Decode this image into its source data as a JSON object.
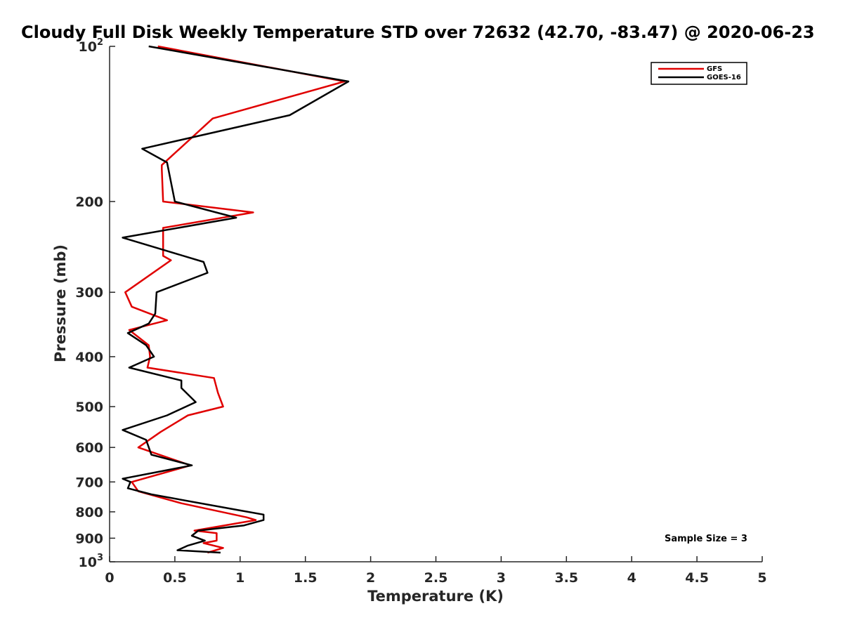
{
  "chart_data": {
    "type": "line",
    "title": "Cloudy Full Disk Weekly Temperature STD over 72632 (42.70, -83.47) @ 2020-06-23",
    "xlabel": "Temperature (K)",
    "ylabel": "Pressure (mb)",
    "xlim": [
      0,
      5
    ],
    "ylim": [
      100,
      1000
    ],
    "yscale": "log",
    "yreversed": true,
    "x_ticks": [
      "0",
      "0.5",
      "1",
      "1.5",
      "2",
      "2.5",
      "3",
      "3.5",
      "4",
      "4.5",
      "5"
    ],
    "x_tick_values": [
      0,
      0.5,
      1,
      1.5,
      2,
      2.5,
      3,
      3.5,
      4,
      4.5,
      5
    ],
    "y_ticks": [
      {
        "value": 100,
        "base": "10",
        "exp": "2"
      },
      {
        "value": 200,
        "label": "200"
      },
      {
        "value": 300,
        "label": "300"
      },
      {
        "value": 400,
        "label": "400"
      },
      {
        "value": 500,
        "label": "500"
      },
      {
        "value": 600,
        "label": "600"
      },
      {
        "value": 700,
        "label": "700"
      },
      {
        "value": 800,
        "label": "800"
      },
      {
        "value": 900,
        "label": "900"
      },
      {
        "value": 1000,
        "base": "10",
        "exp": "3"
      }
    ],
    "legend_position": "top-right",
    "grid": false,
    "annotation": "Sample Size = 3",
    "series": [
      {
        "name": "GFS",
        "color": "#e00000",
        "points": [
          [
            0.37,
            100
          ],
          [
            1.8,
            117
          ],
          [
            0.79,
            138
          ],
          [
            0.4,
            170
          ],
          [
            0.4,
            173
          ],
          [
            0.41,
            200
          ],
          [
            1.1,
            210
          ],
          [
            0.41,
            225
          ],
          [
            0.41,
            255
          ],
          [
            0.47,
            260
          ],
          [
            0.12,
            300
          ],
          [
            0.17,
            320
          ],
          [
            0.44,
            340
          ],
          [
            0.15,
            355
          ],
          [
            0.3,
            380
          ],
          [
            0.31,
            400
          ],
          [
            0.29,
            420
          ],
          [
            0.8,
            440
          ],
          [
            0.83,
            470
          ],
          [
            0.87,
            500
          ],
          [
            0.6,
            520
          ],
          [
            0.39,
            560
          ],
          [
            0.22,
            600
          ],
          [
            0.62,
            650
          ],
          [
            0.17,
            700
          ],
          [
            0.22,
            730
          ],
          [
            0.55,
            770
          ],
          [
            1.05,
            820
          ],
          [
            1.12,
            830
          ],
          [
            0.65,
            870
          ],
          [
            0.82,
            880
          ],
          [
            0.82,
            910
          ],
          [
            0.72,
            920
          ],
          [
            0.87,
            940
          ],
          [
            0.75,
            960
          ]
        ]
      },
      {
        "name": "GOES-16",
        "color": "#000000",
        "points": [
          [
            0.3,
            100
          ],
          [
            1.83,
            117
          ],
          [
            1.38,
            136
          ],
          [
            0.25,
            158
          ],
          [
            0.44,
            168
          ],
          [
            0.5,
            200
          ],
          [
            0.97,
            215
          ],
          [
            0.1,
            235
          ],
          [
            0.72,
            262
          ],
          [
            0.75,
            275
          ],
          [
            0.36,
            300
          ],
          [
            0.35,
            330
          ],
          [
            0.3,
            345
          ],
          [
            0.14,
            360
          ],
          [
            0.28,
            380
          ],
          [
            0.34,
            400
          ],
          [
            0.15,
            420
          ],
          [
            0.55,
            445
          ],
          [
            0.55,
            460
          ],
          [
            0.66,
            490
          ],
          [
            0.44,
            520
          ],
          [
            0.1,
            555
          ],
          [
            0.28,
            580
          ],
          [
            0.32,
            620
          ],
          [
            0.63,
            650
          ],
          [
            0.1,
            690
          ],
          [
            0.16,
            700
          ],
          [
            0.14,
            720
          ],
          [
            0.32,
            740
          ],
          [
            1.0,
            795
          ],
          [
            1.18,
            810
          ],
          [
            1.18,
            830
          ],
          [
            1.03,
            850
          ],
          [
            0.68,
            870
          ],
          [
            0.63,
            890
          ],
          [
            0.73,
            910
          ],
          [
            0.6,
            930
          ],
          [
            0.52,
            950
          ],
          [
            0.85,
            960
          ]
        ]
      }
    ]
  }
}
